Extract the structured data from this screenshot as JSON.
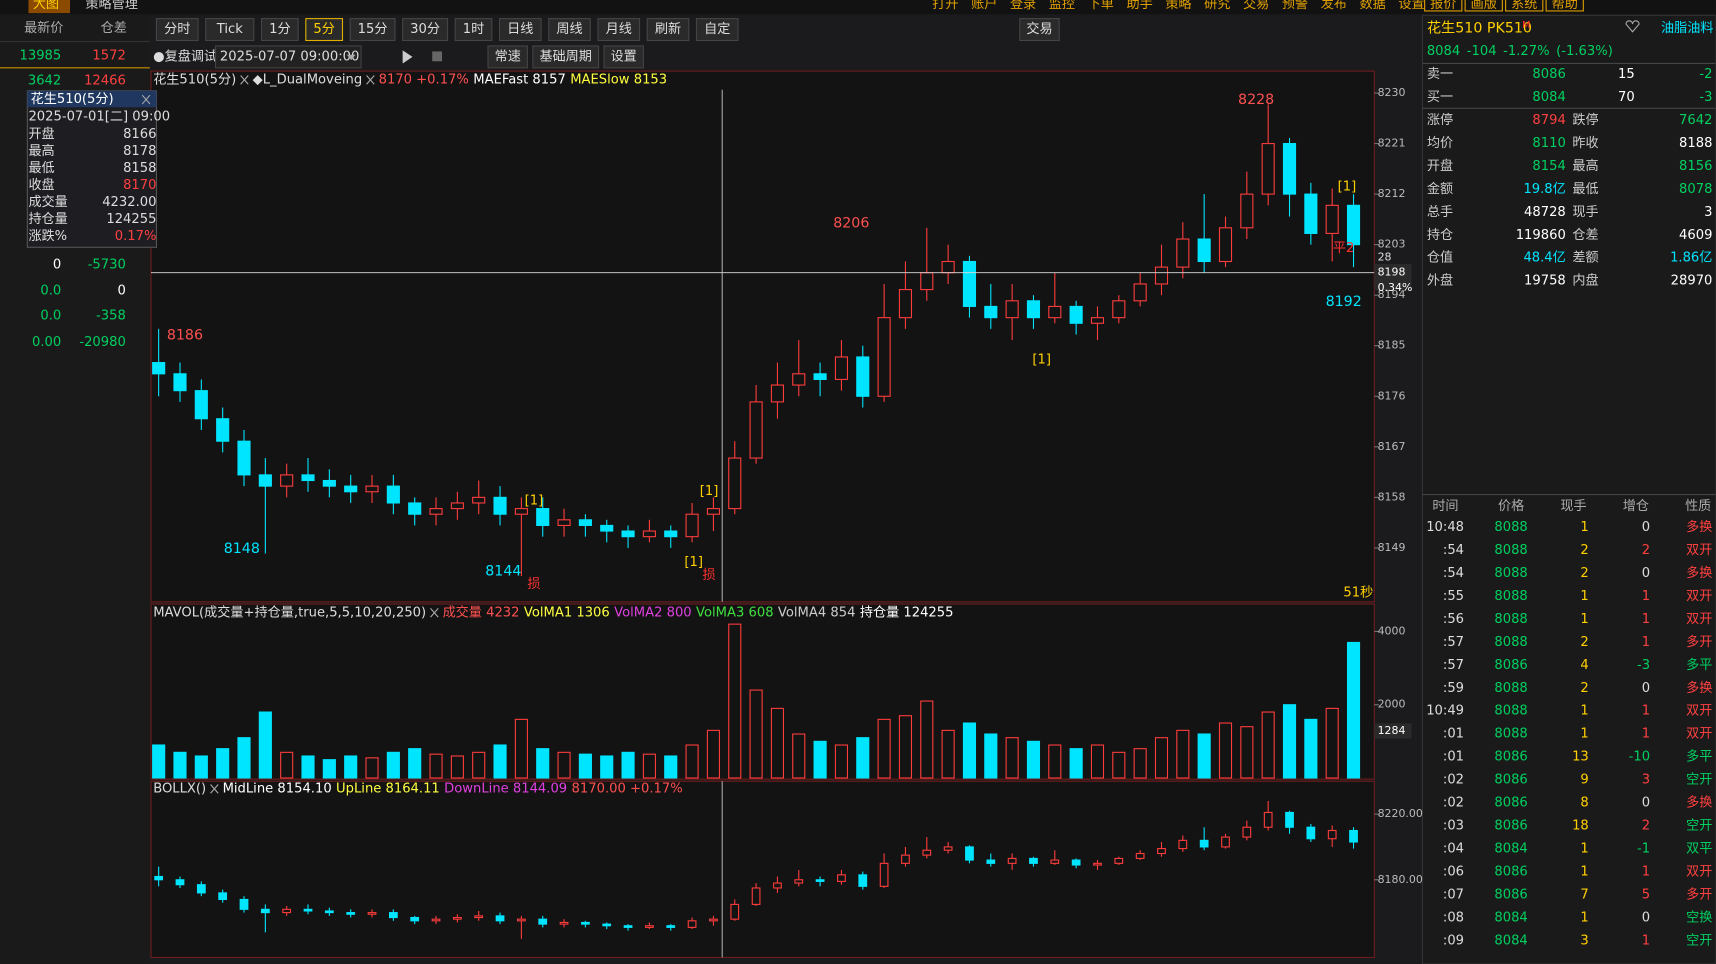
{
  "top_bar": {
    "tabs": [
      "大图",
      "策略管理"
    ],
    "menu": [
      "打开",
      "账户",
      "登录",
      "监控",
      "下单",
      "助手",
      "策略",
      "研究",
      "交易",
      "预警",
      "发布",
      "数据",
      "设置"
    ],
    "boxed": [
      "报价",
      "画版",
      "系统",
      "帮助"
    ]
  },
  "left_panel": {
    "headers": [
      "最新价",
      "仓差"
    ],
    "rows": [
      [
        "13985",
        "1572"
      ],
      [
        "3642",
        "12466"
      ],
      [
        "0",
        "-5730"
      ],
      [
        "0.0",
        "0"
      ],
      [
        "0.0",
        "-358"
      ],
      [
        "0.00",
        "-20980"
      ]
    ],
    "popup": {
      "title": "花生510(5分)",
      "date": "2025-07-01[二] 09:00",
      "rows": [
        [
          "开盘",
          "8166"
        ],
        [
          "最高",
          "8178"
        ],
        [
          "最低",
          "8158"
        ],
        [
          "收盘",
          "8170"
        ],
        [
          "成交量",
          "4232.00"
        ],
        [
          "持仓量",
          "124255"
        ],
        [
          "涨跌%",
          "0.17%"
        ]
      ]
    }
  },
  "toolbar": {
    "periods": [
      "分时",
      "Tick",
      "1分",
      "5分",
      "15分",
      "30分",
      "1时",
      "日线",
      "周线",
      "月线",
      "刷新",
      "自定"
    ],
    "active": 3,
    "trade": "交易"
  },
  "replay": {
    "label": "●复盘调试",
    "datetime": "2025-07-07 09:00:00",
    "buttons": [
      "常速",
      "基础周期",
      "设置"
    ]
  },
  "chart_data": [
    {
      "type": "candlestick",
      "legend": [
        {
          "text": "花生510(5分)",
          "color": "#dddddd",
          "close": true
        },
        {
          "text": "◆L_DualMoveing",
          "color": "#dddddd",
          "close": true
        },
        {
          "text": "8170 +0.17%",
          "color": "#ff5050"
        },
        {
          "text": "MAEFast 8157",
          "color": "#ffffff"
        },
        {
          "text": "MAESlow 8153",
          "color": "#ffff40"
        }
      ],
      "ylim": [
        8139.4,
        8233.9
      ],
      "yticks": [
        8230,
        8221,
        8212,
        8203,
        8194,
        8185,
        8176,
        8167,
        8158,
        8149
      ],
      "up_color": "#ff3c3c",
      "down_color": "#00e5ff",
      "candles": [
        [
          8182,
          8188,
          8176,
          8180
        ],
        [
          8180,
          8182,
          8175,
          8177
        ],
        [
          8177,
          8179,
          8170,
          8172
        ],
        [
          8172,
          8174,
          8166,
          8168
        ],
        [
          8168,
          8170,
          8160,
          8162
        ],
        [
          8162,
          8165,
          8148,
          8160
        ],
        [
          8160,
          8164,
          8158,
          8162
        ],
        [
          8162,
          8165,
          8159,
          8161
        ],
        [
          8161,
          8163,
          8158,
          8160
        ],
        [
          8160,
          8162,
          8157,
          8159
        ],
        [
          8159,
          8162,
          8157,
          8160
        ],
        [
          8160,
          8162,
          8155,
          8157
        ],
        [
          8157,
          8158,
          8153,
          8155
        ],
        [
          8155,
          8158,
          8153,
          8156
        ],
        [
          8156,
          8159,
          8154,
          8157
        ],
        [
          8157,
          8161,
          8155,
          8158
        ],
        [
          8158,
          8160,
          8153,
          8155
        ],
        [
          8155,
          8158,
          8144,
          8156
        ],
        [
          8156,
          8158,
          8151,
          8153
        ],
        [
          8153,
          8156,
          8151,
          8154
        ],
        [
          8154,
          8155,
          8151,
          8153
        ],
        [
          8153,
          8154,
          8150,
          8152
        ],
        [
          8152,
          8153,
          8149,
          8151
        ],
        [
          8151,
          8154,
          8150,
          8152
        ],
        [
          8152,
          8153,
          8149,
          8151
        ],
        [
          8151,
          8157,
          8150,
          8155
        ],
        [
          8155,
          8158,
          8152,
          8156
        ],
        [
          8156,
          8168,
          8155,
          8165
        ],
        [
          8165,
          8178,
          8164,
          8175
        ],
        [
          8175,
          8182,
          8172,
          8178
        ],
        [
          8178,
          8186,
          8176,
          8180
        ],
        [
          8180,
          8182,
          8176,
          8179
        ],
        [
          8179,
          8186,
          8177,
          8183
        ],
        [
          8183,
          8185,
          8174,
          8176
        ],
        [
          8176,
          8196,
          8175,
          8190
        ],
        [
          8190,
          8200,
          8188,
          8195
        ],
        [
          8195,
          8206,
          8193,
          8198
        ],
        [
          8198,
          8203,
          8196,
          8200
        ],
        [
          8200,
          8201,
          8190,
          8192
        ],
        [
          8192,
          8196,
          8188,
          8190
        ],
        [
          8190,
          8196,
          8186,
          8193
        ],
        [
          8193,
          8194,
          8188,
          8190
        ],
        [
          8190,
          8198,
          8189,
          8192
        ],
        [
          8192,
          8193,
          8187,
          8189
        ],
        [
          8189,
          8192,
          8186,
          8190
        ],
        [
          8190,
          8194,
          8189,
          8193
        ],
        [
          8193,
          8198,
          8192,
          8196
        ],
        [
          8196,
          8203,
          8194,
          8199
        ],
        [
          8199,
          8207,
          8197,
          8204
        ],
        [
          8204,
          8212,
          8198,
          8200
        ],
        [
          8200,
          8208,
          8199,
          8206
        ],
        [
          8206,
          8216,
          8204,
          8212
        ],
        [
          8212,
          8228,
          8210,
          8221
        ],
        [
          8221,
          8222,
          8208,
          8212
        ],
        [
          8212,
          8214,
          8203,
          8205
        ],
        [
          8205,
          8213,
          8200,
          8210
        ],
        [
          8210,
          8212,
          8199,
          8203
        ]
      ],
      "annotations": [
        8228,
        8206,
        8186,
        8148,
        8144,
        8192
      ],
      "signals": [
        "[1]",
        "[1]",
        "[1]",
        "[1]",
        "[1]",
        "损",
        "损",
        "平2"
      ],
      "crosshair": {
        "value": 8198,
        "change": "0.34%",
        "extra": "28"
      },
      "countdown": "51秒"
    },
    {
      "type": "bar",
      "legend": [
        {
          "text": "MAVOL(成交量+持仓量,true,5,5,10,20,250)",
          "color": "#dddddd",
          "close": true
        },
        {
          "text": "成交量 4232",
          "color": "#ff5050"
        },
        {
          "text": "VolMA1 1306",
          "color": "#ffff40"
        },
        {
          "text": "VolMA2 800",
          "color": "#e040e0"
        },
        {
          "text": "VolMA3 608",
          "color": "#40e040"
        },
        {
          "text": "VolMA4 854",
          "color": "#cccccc"
        },
        {
          "text": "持仓量 124255",
          "color": "#ffffff"
        }
      ],
      "ylim": [
        0,
        4750
      ],
      "yticks": [
        4000,
        2000
      ],
      "current": 1284,
      "values": [
        900,
        700,
        600,
        800,
        1100,
        1800,
        700,
        600,
        500,
        600,
        550,
        700,
        800,
        650,
        600,
        700,
        900,
        1600,
        800,
        700,
        650,
        600,
        700,
        650,
        600,
        900,
        1300,
        4200,
        2400,
        1900,
        1200,
        1000,
        900,
        1100,
        1600,
        1700,
        2100,
        1300,
        1500,
        1200,
        1100,
        1000,
        900,
        800,
        900,
        700,
        800,
        1100,
        1300,
        1200,
        1500,
        1400,
        1800,
        2000,
        1600,
        1900,
        3700
      ]
    },
    {
      "type": "candlestick-overlay",
      "legend": [
        {
          "text": "BOLLX()",
          "color": "#dddddd",
          "close": true
        },
        {
          "text": "MidLine 8154.10",
          "color": "#ffffff"
        },
        {
          "text": "UpLine 8164.11",
          "color": "#ffff40"
        },
        {
          "text": "DownLine 8144.09",
          "color": "#e040e0"
        },
        {
          "text": "8170.00 +0.17%",
          "color": "#ff5050"
        }
      ],
      "ylim": [
        8132.7,
        8240
      ],
      "yticks": [
        {
          "value": 8220,
          "label": "8220.00"
        },
        {
          "value": 8180,
          "label": "8180.00"
        }
      ]
    }
  ],
  "right_panel": {
    "title": "花生510 PK510",
    "flag": "M",
    "sector": "油脂油料",
    "quote": [
      "8084",
      "-104",
      "-1.27%",
      "(-1.63%)"
    ],
    "order_book": [
      {
        "cells": [
          "卖一",
          "8086",
          "15",
          "-2"
        ],
        "colors": [
          "#cccccc",
          "#00d060",
          "#ffffff",
          "#00d060"
        ]
      },
      {
        "cells": [
          "买一",
          "8084",
          "70",
          "-3"
        ],
        "colors": [
          "#cccccc",
          "#00d060",
          "#ffffff",
          "#00d060"
        ]
      }
    ],
    "stats": [
      {
        "cells": [
          "涨停",
          "8794",
          "跌停",
          "7642"
        ],
        "colors": [
          "#cccccc",
          "#ff4040",
          "#cccccc",
          "#00d060"
        ]
      },
      {
        "cells": [
          "均价",
          "8110",
          "昨收",
          "8188"
        ],
        "colors": [
          "#cccccc",
          "#00d060",
          "#cccccc",
          "#ffffff"
        ]
      },
      {
        "cells": [
          "开盘",
          "8154",
          "最高",
          "8156"
        ],
        "colors": [
          "#cccccc",
          "#00d060",
          "#cccccc",
          "#00d060"
        ]
      },
      {
        "cells": [
          "金额",
          "19.8亿",
          "最低",
          "8078"
        ],
        "colors": [
          "#cccccc",
          "#00e5ff",
          "#cccccc",
          "#00d060"
        ]
      },
      {
        "cells": [
          "总手",
          "48728",
          "现手",
          "3"
        ],
        "colors": [
          "#cccccc",
          "#ffffff",
          "#cccccc",
          "#ffffff"
        ]
      },
      {
        "cells": [
          "持仓",
          "119860",
          "仓差",
          "4609"
        ],
        "colors": [
          "#cccccc",
          "#ffffff",
          "#cccccc",
          "#ffffff"
        ]
      },
      {
        "cells": [
          "仓值",
          "48.4亿",
          "差额",
          "1.86亿"
        ],
        "colors": [
          "#cccccc",
          "#00e5ff",
          "#cccccc",
          "#00e5ff"
        ]
      },
      {
        "cells": [
          "外盘",
          "19758",
          "内盘",
          "28970"
        ],
        "colors": [
          "#cccccc",
          "#ffffff",
          "#cccccc",
          "#ffffff"
        ]
      }
    ],
    "ticks_header": [
      "时间",
      "价格",
      "现手",
      "增仓",
      "性质"
    ],
    "ticks": [
      [
        "10:48",
        "8088",
        "1",
        "0",
        "多换"
      ],
      [
        ":54",
        "8088",
        "2",
        "2",
        "双开"
      ],
      [
        ":54",
        "8088",
        "2",
        "0",
        "多换"
      ],
      [
        ":55",
        "8088",
        "1",
        "1",
        "双开"
      ],
      [
        ":56",
        "8088",
        "1",
        "1",
        "双开"
      ],
      [
        ":57",
        "8088",
        "2",
        "1",
        "多开"
      ],
      [
        ":57",
        "8086",
        "4",
        "-3",
        "多平"
      ],
      [
        ":59",
        "8088",
        "2",
        "0",
        "多换"
      ],
      [
        "10:49",
        "8088",
        "1",
        "1",
        "双开"
      ],
      [
        ":01",
        "8088",
        "1",
        "1",
        "双开"
      ],
      [
        ":01",
        "8086",
        "13",
        "-10",
        "多平"
      ],
      [
        ":02",
        "8086",
        "9",
        "3",
        "空开"
      ],
      [
        ":02",
        "8086",
        "8",
        "0",
        "多换"
      ],
      [
        ":03",
        "8086",
        "18",
        "2",
        "空开"
      ],
      [
        ":04",
        "8084",
        "1",
        "-1",
        "双平"
      ],
      [
        ":06",
        "8086",
        "1",
        "1",
        "双开"
      ],
      [
        ":07",
        "8086",
        "7",
        "5",
        "多开"
      ],
      [
        ":08",
        "8084",
        "1",
        "0",
        "空换"
      ],
      [
        ":09",
        "8084",
        "3",
        "1",
        "空开"
      ]
    ],
    "nature_colors": [
      "#ff4040",
      "#ff4040",
      "#ff4040",
      "#ff4040",
      "#ff4040",
      "#ff4040",
      "#00d060",
      "#ff4040",
      "#ff4040",
      "#ff4040",
      "#00d060",
      "#00d060",
      "#ff4040",
      "#00d060",
      "#00d060",
      "#ff4040",
      "#ff4040",
      "#00d060",
      "#00d060"
    ]
  }
}
